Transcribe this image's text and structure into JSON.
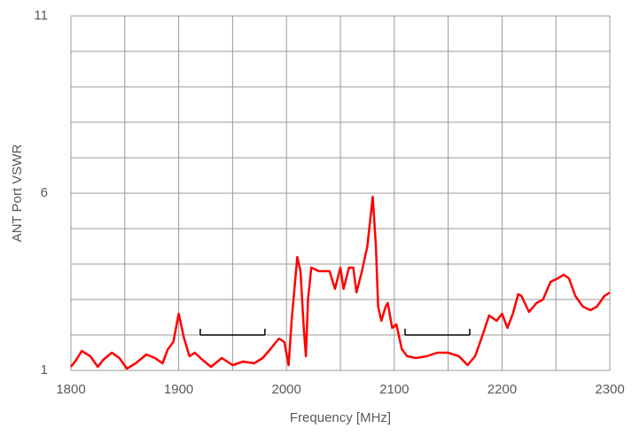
{
  "chart_data": {
    "type": "line",
    "xlabel": "Frequency [MHz]",
    "ylabel": "ANT Port VSWR",
    "xlim": [
      1800,
      2300
    ],
    "ylim": [
      1,
      11
    ],
    "xticks": [
      1800,
      1900,
      2000,
      2100,
      2200,
      2300
    ],
    "yticks": [
      1,
      6,
      11
    ],
    "x_minor_ticks": [
      1850,
      1950,
      2050,
      2150,
      2250
    ],
    "y_minor_ticks": [
      2,
      3,
      4,
      5,
      7,
      8,
      9,
      10
    ],
    "grid": true,
    "spec_lines": [
      {
        "x": [
          1920,
          1980
        ],
        "y": 2
      },
      {
        "x": [
          2110,
          2170
        ],
        "y": 2
      }
    ],
    "series": [
      {
        "color": "#ff0000",
        "x": [
          1800,
          1805,
          1810,
          1818,
          1825,
          1830,
          1838,
          1845,
          1852,
          1860,
          1870,
          1878,
          1885,
          1890,
          1895,
          1900,
          1905,
          1910,
          1915,
          1922,
          1930,
          1940,
          1950,
          1960,
          1970,
          1978,
          1985,
          1993,
          1998,
          2002,
          2005,
          2010,
          2013,
          2016,
          2018,
          2020,
          2023,
          2030,
          2040,
          2045,
          2050,
          2053,
          2058,
          2062,
          2065,
          2070,
          2075,
          2080,
          2083,
          2085,
          2088,
          2092,
          2094,
          2098,
          2102,
          2107,
          2112,
          2120,
          2130,
          2140,
          2150,
          2160,
          2168,
          2175,
          2182,
          2188,
          2195,
          2200,
          2205,
          2210,
          2215,
          2218,
          2225,
          2232,
          2238,
          2245,
          2252,
          2257,
          2262,
          2268,
          2275,
          2282,
          2288,
          2295,
          2300
        ],
        "values": [
          1.1,
          1.3,
          1.55,
          1.4,
          1.1,
          1.3,
          1.5,
          1.35,
          1.05,
          1.2,
          1.45,
          1.35,
          1.2,
          1.6,
          1.8,
          2.6,
          1.9,
          1.4,
          1.5,
          1.3,
          1.1,
          1.35,
          1.15,
          1.25,
          1.2,
          1.35,
          1.6,
          1.9,
          1.8,
          1.15,
          2.5,
          4.2,
          3.8,
          2.2,
          1.4,
          3.0,
          3.9,
          3.8,
          3.8,
          3.3,
          3.9,
          3.3,
          3.9,
          3.9,
          3.2,
          3.8,
          4.5,
          5.9,
          4.5,
          2.8,
          2.4,
          2.8,
          2.9,
          2.2,
          2.3,
          1.6,
          1.4,
          1.35,
          1.4,
          1.5,
          1.5,
          1.4,
          1.15,
          1.4,
          2.0,
          2.55,
          2.4,
          2.6,
          2.2,
          2.6,
          3.15,
          3.1,
          2.65,
          2.9,
          3.0,
          3.5,
          3.6,
          3.7,
          3.6,
          3.1,
          2.8,
          2.7,
          2.8,
          3.1,
          3.2
        ]
      }
    ]
  }
}
